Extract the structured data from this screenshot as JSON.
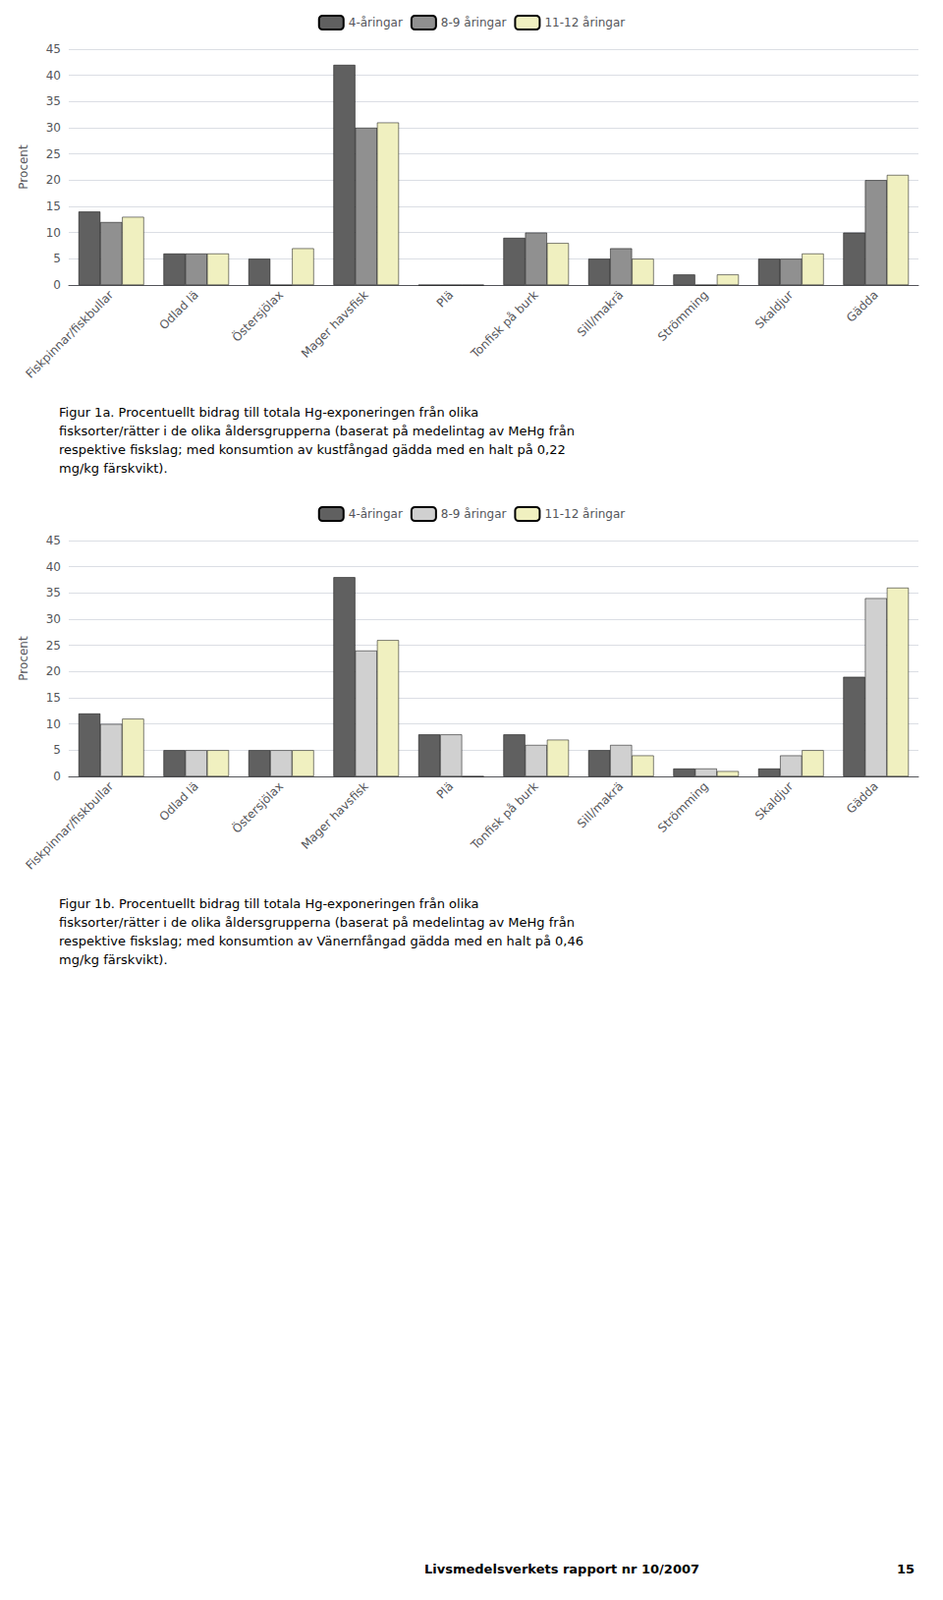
{
  "chart_data": [
    {
      "type": "bar",
      "categories": [
        "Fiskpinnar/fiskbullar",
        "Odlad lä",
        "Östersjölax",
        "Mager havsfisk",
        "Plä",
        "Tonfisk på burk",
        "Sill/makrä",
        "Strömming",
        "Skaldjur",
        "Gädda"
      ],
      "series": [
        {
          "name": "4-åringar",
          "color": "#606060",
          "values": [
            14,
            6,
            5,
            42,
            0,
            9,
            5,
            2,
            5,
            10
          ]
        },
        {
          "name": "8-9 åringar",
          "color": "#909090",
          "values": [
            12,
            6,
            0,
            30,
            0,
            10,
            7,
            0,
            5,
            20
          ]
        },
        {
          "name": "11-12 åringar",
          "color": "#f0f0c0",
          "values": [
            13,
            6,
            7,
            31,
            0,
            8,
            5,
            2,
            6,
            21
          ]
        }
      ],
      "ylabel": "Procent",
      "ylim": [
        0,
        45
      ],
      "yticks": [
        0,
        5,
        10,
        15,
        20,
        25,
        30,
        35,
        40,
        45
      ],
      "grid": true,
      "legend": "top",
      "annotations": [
        "Figur 1a. Procentuellt bidrag till totala Hg-exponeringen från olika\nfisksorter/rätter i de olika åldersgrupperna (baserat på medelintag av MeHg från\nrespektive fiskslag; med konsumtion av kustfångad gädda med en halt på 0,22\nmg/kg färskvikt)."
      ]
    },
    {
      "type": "bar",
      "categories": [
        "Fiskpinnar/fiskbullar",
        "Odlad lä",
        "Östersjölax",
        "Mager havsfisk",
        "Plä",
        "Tonfisk på burk",
        "Sill/makrä",
        "Strömming",
        "Skaldjur",
        "Gädda"
      ],
      "series": [
        {
          "name": "4-åringar",
          "color": "#606060",
          "values": [
            12,
            5,
            5,
            38,
            8,
            8,
            5,
            1.5,
            1.5,
            19
          ]
        },
        {
          "name": "8-9 åringar",
          "color": "#d0d0d0",
          "values": [
            10,
            5,
            5,
            24,
            8,
            6,
            6,
            1.5,
            4,
            34
          ]
        },
        {
          "name": "11-12 åringar",
          "color": "#f0f0c0",
          "values": [
            11,
            5,
            5,
            26,
            0,
            7,
            4,
            1,
            5,
            36
          ]
        }
      ],
      "ylabel": "Procent",
      "ylim": [
        0,
        45
      ],
      "yticks": [
        0,
        5,
        10,
        15,
        20,
        25,
        30,
        35,
        40,
        45
      ],
      "grid": true,
      "legend": "top",
      "annotations": [
        "Figur 1b. Procentuellt bidrag till totala Hg-exponeringen från olika\nfisksorter/rätter i de olika åldersgrupperna (baserat på medelintag av MeHg från\nrespektive fiskslag; med konsumtion av Vänernfångad gädda med en halt på 0,46\nmg/kg färskvikt).",
        "Livsmedelsverkets rapport nr 10/2007",
        "15"
      ]
    }
  ]
}
